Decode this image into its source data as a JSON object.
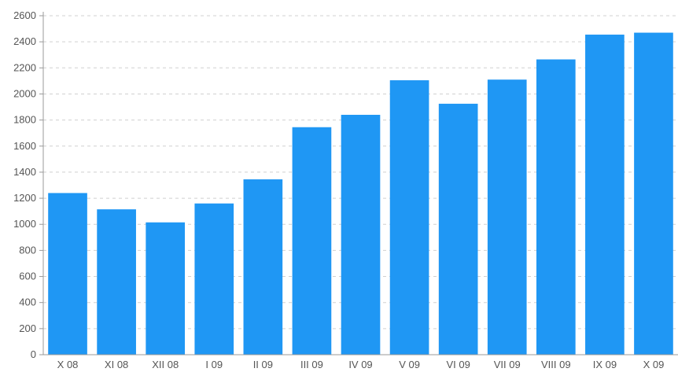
{
  "chart_data": {
    "type": "bar",
    "title": "",
    "xlabel": "",
    "ylabel": "",
    "categories": [
      "X 08",
      "XI 08",
      "XII 08",
      "I 09",
      "II 09",
      "III 09",
      "IV 09",
      "V 09",
      "VI 09",
      "VII 09",
      "VIII 09",
      "IX 09",
      "X 09"
    ],
    "values": [
      1240,
      1115,
      1015,
      1160,
      1345,
      1745,
      1840,
      2105,
      1925,
      2110,
      2265,
      2455,
      2470
    ],
    "ylim": [
      0,
      2600
    ],
    "yticks": [
      "0",
      "200",
      "400",
      "600",
      "800",
      "1000",
      "1200",
      "1400",
      "1600",
      "1800",
      "2000",
      "2200",
      "2400",
      "2600"
    ],
    "grid": true,
    "grid_style": "dashed",
    "legend": "none",
    "colors": {
      "bar": "#1f97f4",
      "grid": "#d0d0d0",
      "axis": "#999999",
      "text": "#555555"
    }
  }
}
